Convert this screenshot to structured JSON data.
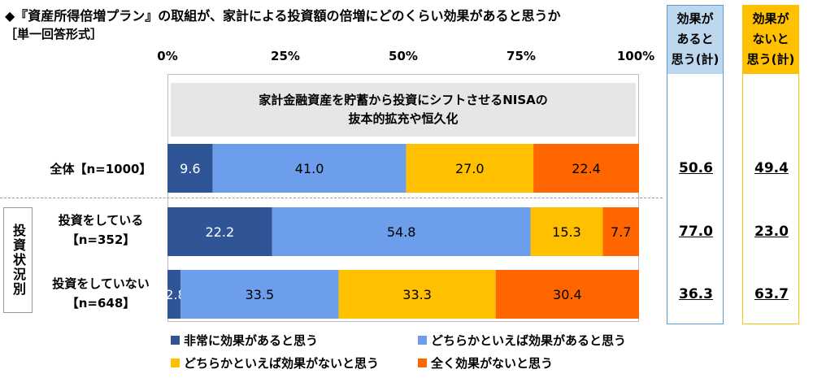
{
  "title": {
    "line1": "◆『資産所得倍増プラン』の取組が、家計による投資額の倍増にどのくらい効果があると思うか",
    "line2": "［単一回答形式］"
  },
  "subtitle": {
    "line1": "家計金融資産を貯蓄から投資にシフトさせるNISAの",
    "line2": "抜本的拡充や恒久化"
  },
  "group_label": "投資状況別",
  "columns": {
    "effective": {
      "line1": "効果が",
      "line2": "あると",
      "line3": "思う(計)"
    },
    "not_effective": {
      "line1": "効果が",
      "line2": "ないと",
      "line3": "思う(計)"
    }
  },
  "rows": [
    {
      "label1": "全体【n=1000】",
      "label2": "",
      "effective_total": "50.6",
      "not_effective_total": "49.4"
    },
    {
      "label1": "投資をしている",
      "label2": "【n=352】",
      "effective_total": "77.0",
      "not_effective_total": "23.0"
    },
    {
      "label1": "投資をしていない",
      "label2": "【n=648】",
      "effective_total": "36.3",
      "not_effective_total": "63.7"
    }
  ],
  "colors": {
    "very": "#2f5597",
    "somewhat": "#6d9eeb",
    "somewhat_not": "#ffc000",
    "not_at_all": "#ff6600"
  },
  "chart_data": {
    "type": "bar",
    "orientation": "horizontal",
    "stacked": true,
    "xlim": [
      0,
      100
    ],
    "x_ticks": [
      "0%",
      "25%",
      "50%",
      "75%",
      "100%"
    ],
    "categories": [
      "全体【n=1000】",
      "投資をしている【n=352】",
      "投資をしていない【n=648】"
    ],
    "series": [
      {
        "name": "非常に効果があると思う",
        "values": [
          9.6,
          22.2,
          2.8
        ]
      },
      {
        "name": "どちらかといえば効果があると思う",
        "values": [
          41.0,
          54.8,
          33.5
        ]
      },
      {
        "name": "どちらかといえば効果がないと思う",
        "values": [
          27.0,
          15.3,
          33.3
        ]
      },
      {
        "name": "全く効果がないと思う",
        "values": [
          22.4,
          7.7,
          30.4
        ]
      }
    ],
    "legend": "bottom"
  }
}
